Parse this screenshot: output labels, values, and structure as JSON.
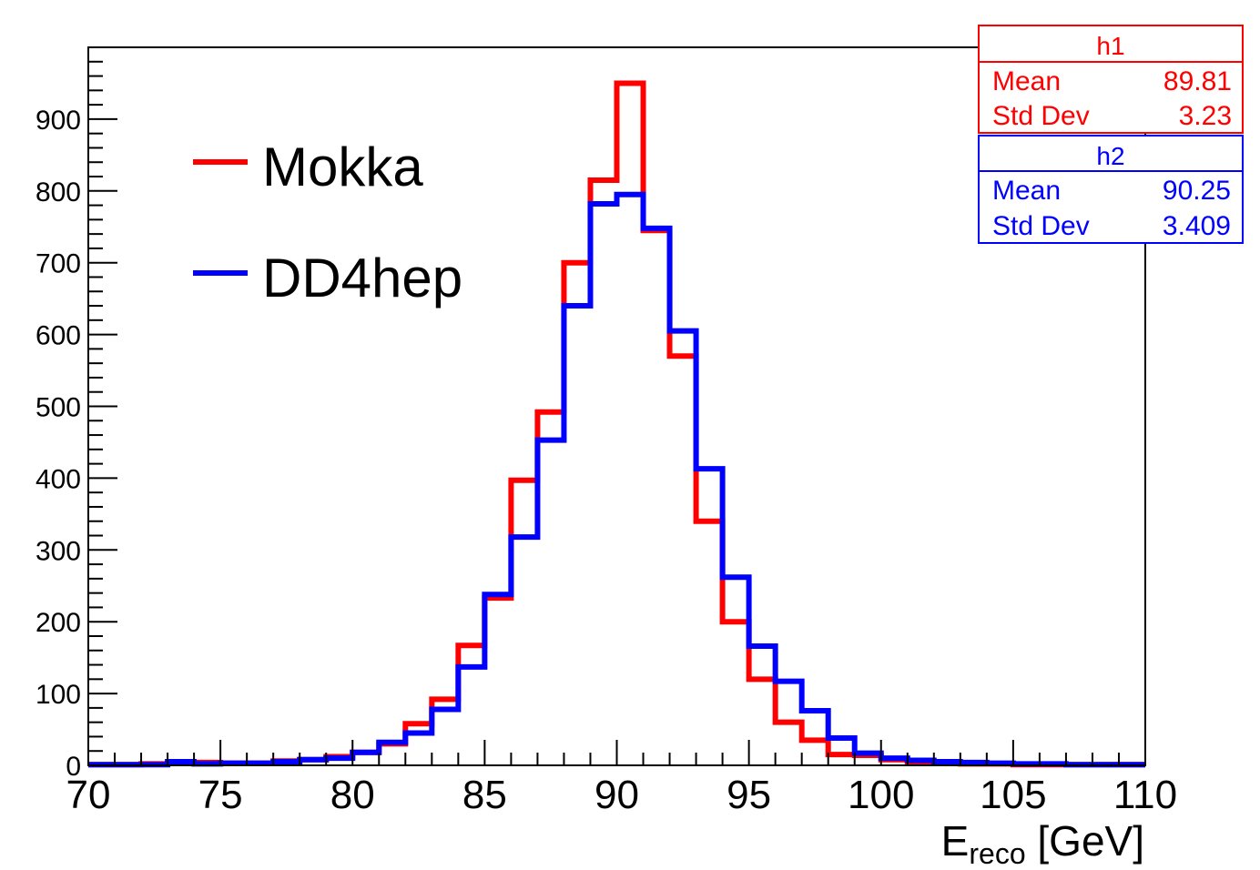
{
  "chart_data": {
    "type": "histogram",
    "xlabel_main": "E",
    "xlabel_sub": "reco",
    "xlabel_unit": " [GeV]",
    "xlim": [
      70,
      110
    ],
    "ylim": [
      0,
      1000
    ],
    "x_ticks": [
      70,
      75,
      80,
      85,
      90,
      95,
      100,
      105,
      110
    ],
    "y_ticks": [
      0,
      100,
      200,
      300,
      400,
      500,
      600,
      700,
      800,
      900
    ],
    "bin_edges_start": 70,
    "bin_width": 1,
    "grid": false,
    "legend_position": "top-left",
    "series": [
      {
        "name": "Mokka",
        "color": "#ff0000",
        "values": [
          1,
          1,
          2,
          3,
          4,
          3,
          3,
          6,
          8,
          12,
          18,
          30,
          58,
          92,
          167,
          233,
          397,
          492,
          700,
          815,
          950,
          745,
          570,
          340,
          200,
          120,
          60,
          35,
          15,
          14,
          8,
          5,
          3,
          2,
          2,
          1,
          1,
          1,
          1,
          1
        ]
      },
      {
        "name": "DD4hep",
        "color": "#0000ff",
        "values": [
          1,
          1,
          1,
          5,
          2,
          3,
          3,
          5,
          8,
          10,
          18,
          32,
          45,
          78,
          137,
          238,
          318,
          453,
          640,
          782,
          795,
          748,
          605,
          413,
          262,
          166,
          117,
          76,
          38,
          17,
          10,
          7,
          5,
          4,
          3,
          2,
          2,
          1,
          1,
          1
        ]
      }
    ]
  },
  "stats": [
    {
      "title": "h1",
      "color": "#ff0000",
      "mean_label": "Mean",
      "mean": "89.81",
      "std_label": "Std Dev",
      "std": "3.23"
    },
    {
      "title": "h2",
      "color": "#0000ff",
      "mean_label": "Mean",
      "mean": "90.25",
      "std_label": "Std Dev",
      "std": "3.409"
    }
  ]
}
